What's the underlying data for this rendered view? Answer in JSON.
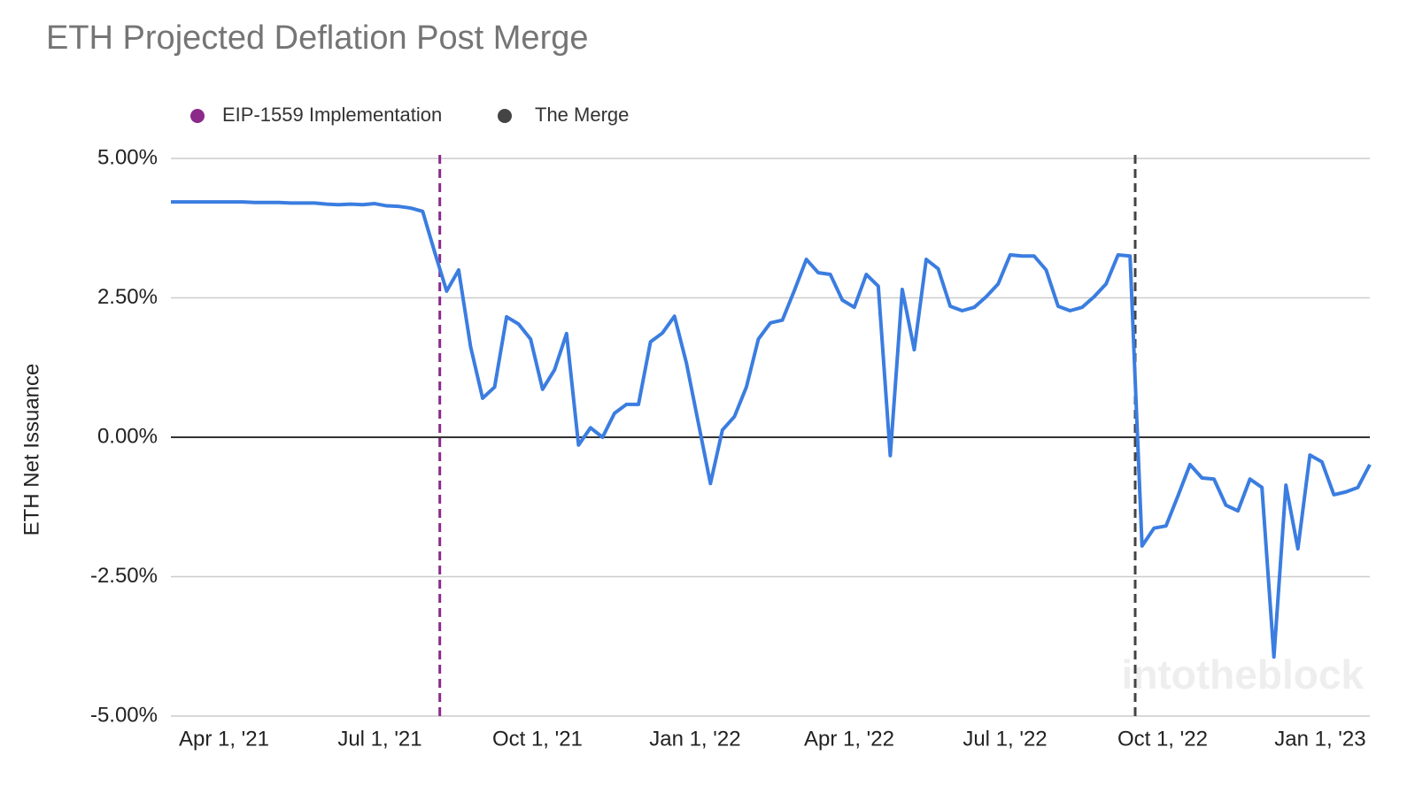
{
  "chart_data": {
    "type": "line",
    "title": "ETH Projected Deflation Post Merge",
    "y_label": "ETH Net Issuance",
    "watermark": "intotheblock",
    "grid": true,
    "x": [
      "2021-03-01",
      "2021-03-08",
      "2021-03-15",
      "2021-03-22",
      "2021-03-29",
      "2021-04-05",
      "2021-04-12",
      "2021-04-19",
      "2021-04-26",
      "2021-05-03",
      "2021-05-10",
      "2021-05-17",
      "2021-05-24",
      "2021-05-31",
      "2021-06-07",
      "2021-06-14",
      "2021-06-21",
      "2021-06-28",
      "2021-07-05",
      "2021-07-12",
      "2021-07-19",
      "2021-07-26",
      "2021-08-02",
      "2021-08-09",
      "2021-08-16",
      "2021-08-23",
      "2021-08-30",
      "2021-09-06",
      "2021-09-13",
      "2021-09-20",
      "2021-09-27",
      "2021-10-04",
      "2021-10-11",
      "2021-10-18",
      "2021-10-25",
      "2021-11-01",
      "2021-11-08",
      "2021-11-15",
      "2021-11-22",
      "2021-11-29",
      "2021-12-06",
      "2021-12-13",
      "2021-12-20",
      "2021-12-27",
      "2022-01-03",
      "2022-01-10",
      "2022-01-17",
      "2022-01-24",
      "2022-01-31",
      "2022-02-07",
      "2022-02-14",
      "2022-02-21",
      "2022-02-28",
      "2022-03-07",
      "2022-03-14",
      "2022-03-21",
      "2022-03-28",
      "2022-04-04",
      "2022-04-11",
      "2022-04-18",
      "2022-04-25",
      "2022-05-02",
      "2022-05-09",
      "2022-05-16",
      "2022-05-23",
      "2022-05-30",
      "2022-06-06",
      "2022-06-13",
      "2022-06-20",
      "2022-06-27",
      "2022-07-04",
      "2022-07-11",
      "2022-07-18",
      "2022-07-25",
      "2022-08-01",
      "2022-08-08",
      "2022-08-15",
      "2022-08-22",
      "2022-08-29",
      "2022-09-05",
      "2022-09-12",
      "2022-09-19",
      "2022-09-26",
      "2022-10-03",
      "2022-10-10",
      "2022-10-17",
      "2022-10-24",
      "2022-10-31",
      "2022-11-07",
      "2022-11-14",
      "2022-11-21",
      "2022-11-28",
      "2022-12-05",
      "2022-12-12",
      "2022-12-19",
      "2022-12-26",
      "2023-01-02",
      "2023-01-09",
      "2023-01-16",
      "2023-01-23",
      "2023-01-30"
    ],
    "series": [
      {
        "name": "ETH Net Issuance",
        "color": "#3b7de0",
        "values": [
          4.22,
          4.22,
          4.22,
          4.22,
          4.22,
          4.22,
          4.22,
          4.21,
          4.21,
          4.21,
          4.2,
          4.2,
          4.2,
          4.18,
          4.17,
          4.18,
          4.17,
          4.19,
          4.15,
          4.14,
          4.11,
          4.05,
          3.32,
          2.62,
          3.0,
          1.62,
          0.7,
          0.9,
          2.16,
          2.03,
          1.76,
          0.86,
          1.21,
          1.86,
          -0.14,
          0.17,
          0.0,
          0.43,
          0.59,
          0.59,
          1.71,
          1.87,
          2.17,
          1.33,
          0.25,
          -0.83,
          0.13,
          0.37,
          0.9,
          1.76,
          2.05,
          2.1,
          2.63,
          3.19,
          2.95,
          2.92,
          2.46,
          2.33,
          2.92,
          2.71,
          -0.33,
          2.65,
          1.57,
          3.19,
          3.02,
          2.35,
          2.27,
          2.33,
          2.52,
          2.75,
          3.27,
          3.25,
          3.25,
          3.0,
          2.35,
          2.27,
          2.33,
          2.52,
          2.75,
          3.27,
          3.25,
          -1.95,
          -1.63,
          -1.59,
          -1.05,
          -0.49,
          -0.73,
          -0.75,
          -1.22,
          -1.32,
          -0.75,
          -0.9,
          -3.94,
          -0.86,
          -2.0,
          -0.32,
          -0.44,
          -1.03,
          -0.98,
          -0.9,
          -0.49
        ]
      }
    ],
    "markers": [
      {
        "name": "EIP-1559 Implementation",
        "x": "2021-08-05",
        "color": "#8b2a8b"
      },
      {
        "name": "The Merge",
        "x": "2022-09-15",
        "color": "#444444"
      }
    ],
    "xlim": [
      "2021-03-01",
      "2023-01-30"
    ],
    "xticks": [
      {
        "value": "2021-04-01",
        "label": "Apr 1, '21"
      },
      {
        "value": "2021-07-01",
        "label": "Jul 1, '21"
      },
      {
        "value": "2021-10-01",
        "label": "Oct 1, '21"
      },
      {
        "value": "2022-01-01",
        "label": "Jan 1, '22"
      },
      {
        "value": "2022-04-01",
        "label": "Apr 1, '22"
      },
      {
        "value": "2022-07-01",
        "label": "Jul 1, '22"
      },
      {
        "value": "2022-10-01",
        "label": "Oct 1, '22"
      },
      {
        "value": "2023-01-01",
        "label": "Jan 1, '23"
      }
    ],
    "ylim": [
      -5,
      5
    ],
    "yticks": [
      {
        "value": -5,
        "label": "-5.00%"
      },
      {
        "value": -2.5,
        "label": "-2.50%"
      },
      {
        "value": 0,
        "label": "0.00%"
      },
      {
        "value": 2.5,
        "label": "2.50%"
      },
      {
        "value": 5,
        "label": "5.00%"
      }
    ]
  }
}
